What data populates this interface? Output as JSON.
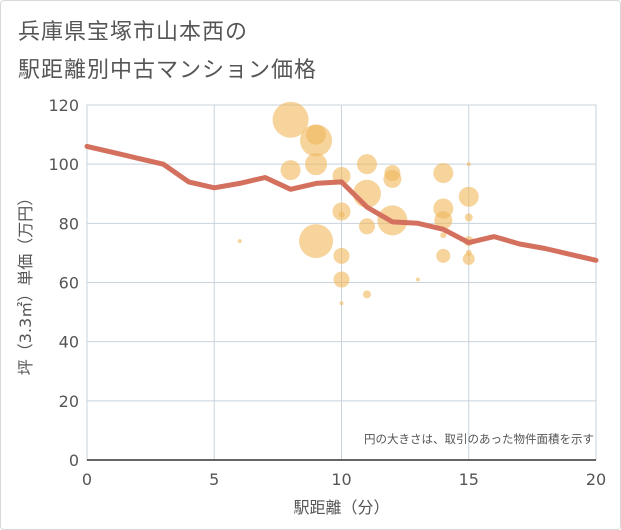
{
  "title": {
    "line1": "兵庫県宝塚市山本西の",
    "line2": "駅距離別中古マンション価格"
  },
  "chart_data": {
    "type": "scatter",
    "xlabel": "駅距離（分）",
    "ylabel": "坪（3.3㎡）単価（万円）",
    "xlim": [
      0,
      20
    ],
    "ylim": [
      0,
      120
    ],
    "xticks": [
      0,
      5,
      10,
      15,
      20
    ],
    "yticks": [
      0,
      20,
      40,
      60,
      80,
      100,
      120
    ],
    "grid": true,
    "note": "円の大きさは、取引のあった物件面積を示す",
    "colors": {
      "bubble": "#f0b85a",
      "line": "#d4705e",
      "grid": "#c8d3dd"
    },
    "bubbles": [
      {
        "x": 6,
        "y": 74,
        "size": 2
      },
      {
        "x": 8,
        "y": 115,
        "size": 18
      },
      {
        "x": 8,
        "y": 98,
        "size": 10
      },
      {
        "x": 9,
        "y": 108,
        "size": 16
      },
      {
        "x": 9,
        "y": 110,
        "size": 10
      },
      {
        "x": 9,
        "y": 100,
        "size": 11
      },
      {
        "x": 9,
        "y": 74,
        "size": 17
      },
      {
        "x": 10,
        "y": 96,
        "size": 9
      },
      {
        "x": 10,
        "y": 84,
        "size": 9
      },
      {
        "x": 10,
        "y": 83,
        "size": 3
      },
      {
        "x": 10,
        "y": 69,
        "size": 8
      },
      {
        "x": 10,
        "y": 61,
        "size": 8
      },
      {
        "x": 10,
        "y": 53,
        "size": 2
      },
      {
        "x": 11,
        "y": 100,
        "size": 10
      },
      {
        "x": 11,
        "y": 90,
        "size": 14
      },
      {
        "x": 11,
        "y": 79,
        "size": 8
      },
      {
        "x": 11,
        "y": 56,
        "size": 4
      },
      {
        "x": 12,
        "y": 97,
        "size": 8
      },
      {
        "x": 12,
        "y": 95,
        "size": 9
      },
      {
        "x": 12,
        "y": 81,
        "size": 15
      },
      {
        "x": 13,
        "y": 61,
        "size": 2
      },
      {
        "x": 14,
        "y": 97,
        "size": 10
      },
      {
        "x": 14,
        "y": 85,
        "size": 10
      },
      {
        "x": 14,
        "y": 81,
        "size": 9
      },
      {
        "x": 14,
        "y": 76,
        "size": 3
      },
      {
        "x": 14,
        "y": 69,
        "size": 7
      },
      {
        "x": 15,
        "y": 100,
        "size": 2
      },
      {
        "x": 15,
        "y": 89,
        "size": 10
      },
      {
        "x": 15,
        "y": 82,
        "size": 4
      },
      {
        "x": 15,
        "y": 74,
        "size": 5
      },
      {
        "x": 15,
        "y": 70,
        "size": 3
      },
      {
        "x": 15,
        "y": 68,
        "size": 6
      }
    ],
    "series": [
      {
        "x": [
          0,
          1,
          2,
          3,
          4,
          5,
          6,
          7,
          8,
          9,
          10,
          11,
          12,
          13,
          14,
          15,
          16,
          17,
          18,
          19,
          20
        ],
        "values": [
          106,
          104,
          102,
          100,
          94,
          92,
          93.5,
          95.5,
          91.5,
          93.5,
          94,
          85.5,
          80.5,
          80,
          78,
          73.5,
          75.5,
          73,
          71.5,
          69.5,
          67.5
        ]
      }
    ]
  }
}
